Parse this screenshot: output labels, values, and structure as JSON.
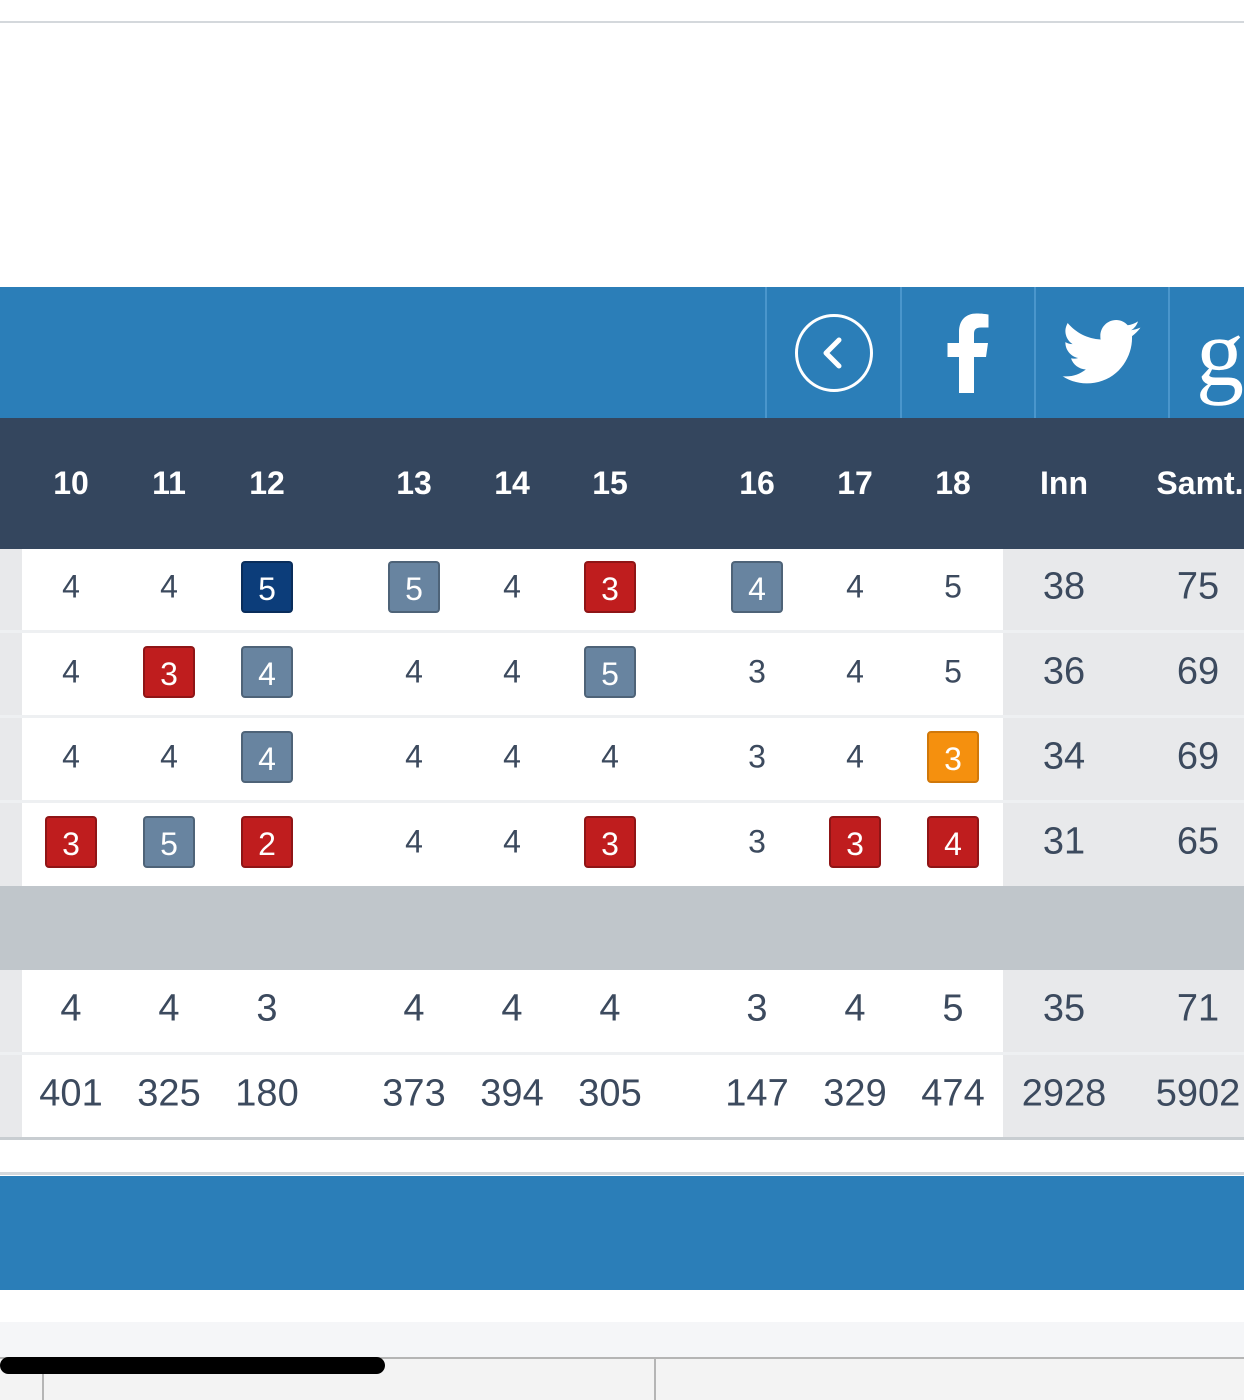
{
  "social": {
    "back_icon": "chevron-left-circle-icon",
    "facebook_icon": "facebook-icon",
    "twitter_icon": "twitter-icon",
    "google_icon": "google-icon",
    "google_glyph": "g"
  },
  "header": [
    "10",
    "11",
    "12",
    "13",
    "14",
    "15",
    "16",
    "17",
    "18",
    "Inn",
    "Samt."
  ],
  "rows": [
    [
      {
        "v": "4"
      },
      {
        "v": "4"
      },
      {
        "v": "5",
        "badge": "dblue"
      },
      {
        "v": "5",
        "badge": "sblue"
      },
      {
        "v": "4"
      },
      {
        "v": "3",
        "badge": "red"
      },
      {
        "v": "4",
        "badge": "sblue"
      },
      {
        "v": "4"
      },
      {
        "v": "5"
      },
      {
        "v": "38"
      },
      {
        "v": "75"
      }
    ],
    [
      {
        "v": "4"
      },
      {
        "v": "3",
        "badge": "red"
      },
      {
        "v": "4",
        "badge": "sblue"
      },
      {
        "v": "4"
      },
      {
        "v": "4"
      },
      {
        "v": "5",
        "badge": "sblue"
      },
      {
        "v": "3"
      },
      {
        "v": "4"
      },
      {
        "v": "5"
      },
      {
        "v": "36"
      },
      {
        "v": "69"
      }
    ],
    [
      {
        "v": "4"
      },
      {
        "v": "4"
      },
      {
        "v": "4",
        "badge": "sblue"
      },
      {
        "v": "4"
      },
      {
        "v": "4"
      },
      {
        "v": "4"
      },
      {
        "v": "3"
      },
      {
        "v": "4"
      },
      {
        "v": "3",
        "badge": "orange"
      },
      {
        "v": "34"
      },
      {
        "v": "69"
      }
    ],
    [
      {
        "v": "3",
        "badge": "red"
      },
      {
        "v": "5",
        "badge": "sblue"
      },
      {
        "v": "2",
        "badge": "red"
      },
      {
        "v": "4"
      },
      {
        "v": "4"
      },
      {
        "v": "3",
        "badge": "red"
      },
      {
        "v": "3"
      },
      {
        "v": "3",
        "badge": "red"
      },
      {
        "v": "4",
        "badge": "red"
      },
      {
        "v": "31"
      },
      {
        "v": "65"
      }
    ]
  ],
  "par": [
    "4",
    "4",
    "3",
    "4",
    "4",
    "4",
    "3",
    "4",
    "5",
    "35",
    "71"
  ],
  "length": [
    "401",
    "325",
    "180",
    "373",
    "394",
    "305",
    "147",
    "329",
    "474",
    "2928",
    "5902"
  ],
  "colors": {
    "brand_blue": "#2b7eb8",
    "header_navy": "#34465e",
    "eagle": "#0c3d7a",
    "bogey": "#6884a0",
    "birdie": "#bf1d1e",
    "highlight": "#f5900e"
  }
}
